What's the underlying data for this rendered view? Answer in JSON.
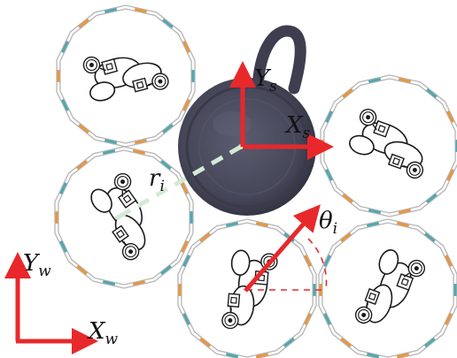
{
  "labels": {
    "world_y": "Y",
    "world_y_sub": "w",
    "world_x": "X",
    "world_x_sub": "w",
    "sensor_y": "Y",
    "sensor_y_sub": "s",
    "sensor_x": "X",
    "sensor_x_sub": "s",
    "radius": "r",
    "radius_sub": "i",
    "angle": "θ",
    "angle_sub": "i"
  },
  "colors": {
    "axis_red": "#e8282b",
    "ring_gray": "#b5b5b5",
    "segment_orange": "#e8963c",
    "segment_teal": "#4fa7b0",
    "radius_dash": "#d3ead5",
    "mug_body": "#4a4a5e",
    "mug_rim": "#3c3b4c"
  },
  "icons": [
    "robot-module-icon",
    "mug-object-icon"
  ]
}
